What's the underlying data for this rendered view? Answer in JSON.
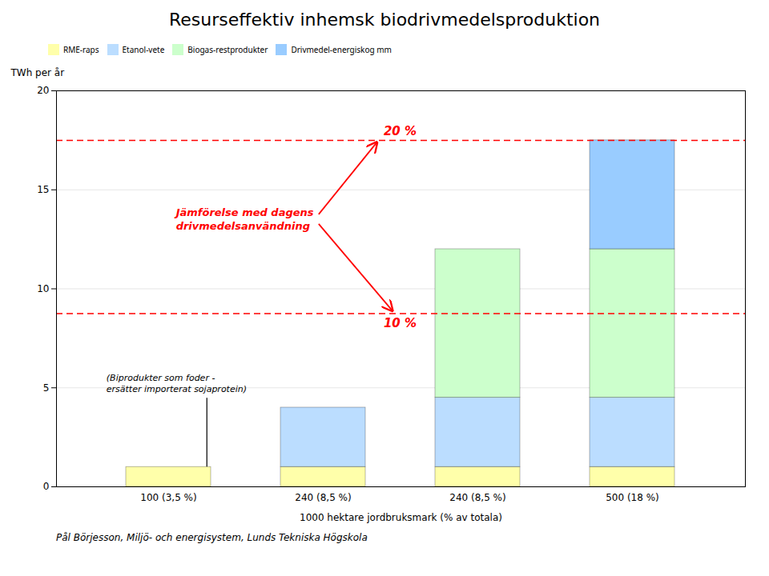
{
  "chart_data": {
    "type": "bar",
    "stacked": true,
    "title": "Resurseffektiv inhemsk biodrivmedelsproduktion",
    "xlabel": "1000 hektare jordbruksmark (% av totala)",
    "ylabel": "TWh per år",
    "caption": "Pål Börjesson, Miljö- och energisystem, Lunds Tekniska Högskola",
    "categories": [
      "100 (3,5 %)",
      "240 (8,5 %)",
      "240 (8,5 %)",
      "500 (18 %)"
    ],
    "series": [
      {
        "name": "RME-raps",
        "color": "#FFFFAA",
        "values": [
          1.0,
          1.0,
          1.0,
          1.0
        ]
      },
      {
        "name": "Etanol-vete",
        "color": "#BBDDFF",
        "values": [
          0.0,
          3.0,
          3.5,
          3.5
        ]
      },
      {
        "name": "Biogas-restprodukter",
        "color": "#CCFFCC",
        "values": [
          0.0,
          0.0,
          7.5,
          7.5
        ]
      },
      {
        "name": "Drivmedel-energiskog mm",
        "color": "#99CCFF",
        "values": [
          0.0,
          0.0,
          0.0,
          5.5
        ]
      }
    ],
    "ylim": [
      0,
      20
    ],
    "yticks": [
      0,
      5,
      10,
      15,
      20
    ],
    "grid": true,
    "legend": "top",
    "reference_lines": [
      {
        "value": 17.5,
        "label": "20 %",
        "color": "#FF0000",
        "line_style": "dashed"
      },
      {
        "value": 8.75,
        "label": "10 %",
        "color": "#FF0000",
        "line_style": "dashed"
      }
    ],
    "annotations": [
      {
        "text": "Jämförelse med dagens\ndrivmedelsanvändning",
        "color": "#FF0000"
      },
      {
        "text": "(Biprodukter som foder -\nersätter importerat sojaprotein)",
        "color": "#000000"
      }
    ]
  }
}
